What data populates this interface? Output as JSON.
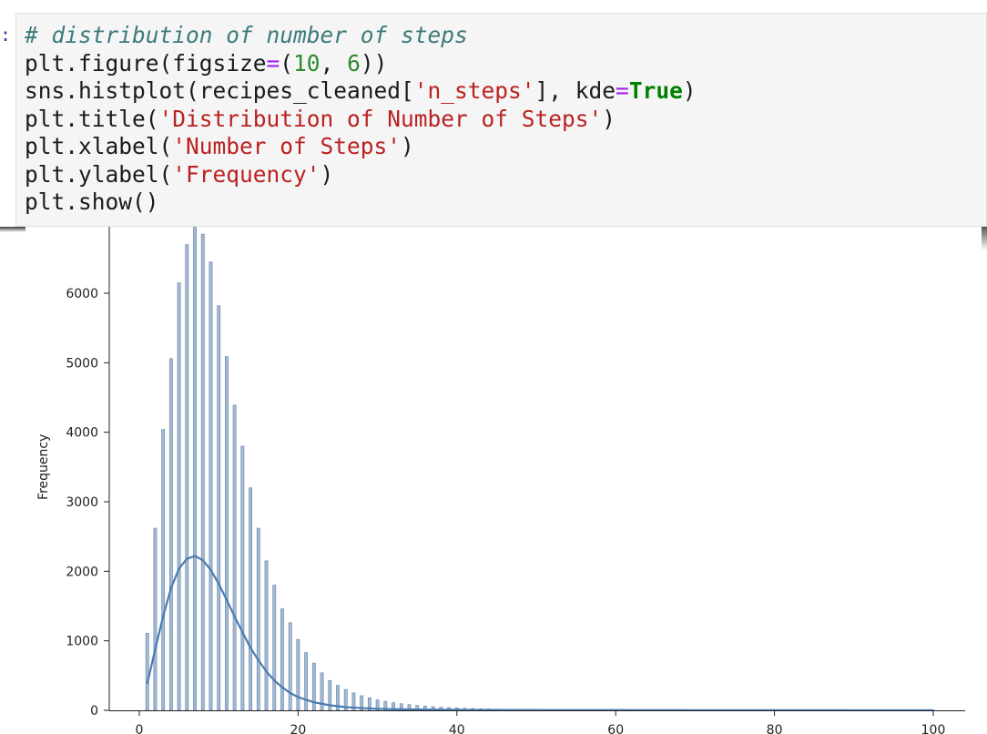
{
  "cell": {
    "prompt": ":",
    "lines": [
      [
        {
          "t": "# distribution of number of steps",
          "c": "comment"
        }
      ],
      [
        {
          "t": "plt.figure(figsize",
          "c": "plain"
        },
        {
          "t": "=",
          "c": "op"
        },
        {
          "t": "(",
          "c": "plain"
        },
        {
          "t": "10",
          "c": "number"
        },
        {
          "t": ", ",
          "c": "plain"
        },
        {
          "t": "6",
          "c": "number"
        },
        {
          "t": "))",
          "c": "plain"
        }
      ],
      [
        {
          "t": "sns.histplot(recipes_cleaned[",
          "c": "plain"
        },
        {
          "t": "'n_steps'",
          "c": "string"
        },
        {
          "t": "], kde",
          "c": "plain"
        },
        {
          "t": "=",
          "c": "op"
        },
        {
          "t": "True",
          "c": "keyword"
        },
        {
          "t": ")",
          "c": "plain"
        }
      ],
      [
        {
          "t": "plt.title(",
          "c": "plain"
        },
        {
          "t": "'Distribution of Number of Steps'",
          "c": "string"
        },
        {
          "t": ")",
          "c": "plain"
        }
      ],
      [
        {
          "t": "plt.xlabel(",
          "c": "plain"
        },
        {
          "t": "'Number of Steps'",
          "c": "string"
        },
        {
          "t": ")",
          "c": "plain"
        }
      ],
      [
        {
          "t": "plt.ylabel(",
          "c": "plain"
        },
        {
          "t": "'Frequency'",
          "c": "string"
        },
        {
          "t": ")",
          "c": "plain"
        }
      ],
      [
        {
          "t": "plt.show()",
          "c": "plain"
        }
      ]
    ]
  },
  "colors": {
    "bar_fill": "#a7b9d1",
    "bar_edge": "#5d82ab",
    "kde_line": "#4a7bb0",
    "axis": "#222222"
  },
  "chart_data": {
    "type": "bar",
    "title": "",
    "xlabel": "",
    "ylabel": "Frequency",
    "xlim": [
      -5,
      105
    ],
    "ylim": [
      0,
      7000
    ],
    "grid": false,
    "xticks": [
      0,
      20,
      40,
      60,
      80,
      100
    ],
    "yticks": [
      0,
      1000,
      2000,
      3000,
      4000,
      5000,
      6000
    ],
    "bars": {
      "x": [
        1,
        2,
        3,
        4,
        5,
        6,
        7,
        8,
        9,
        10,
        11,
        12,
        13,
        14,
        15,
        16,
        17,
        18,
        19,
        20,
        21,
        22,
        23,
        24,
        25,
        26,
        27,
        28,
        29,
        30,
        31,
        32,
        33,
        34,
        35,
        36,
        37,
        38,
        39,
        40,
        41,
        42,
        43,
        44,
        45,
        46,
        47,
        48,
        49,
        50,
        55,
        60,
        65,
        70,
        75,
        80,
        85,
        90,
        95,
        100
      ],
      "values": [
        1110,
        2620,
        4040,
        5060,
        6150,
        6700,
        6950,
        6850,
        6450,
        5820,
        5090,
        4390,
        3800,
        3200,
        2620,
        2150,
        1800,
        1460,
        1260,
        1020,
        830,
        680,
        540,
        430,
        360,
        300,
        250,
        210,
        180,
        150,
        130,
        110,
        95,
        82,
        70,
        60,
        52,
        45,
        40,
        35,
        30,
        26,
        22,
        20,
        18,
        16,
        15,
        14,
        13,
        12,
        9,
        7,
        6,
        5,
        4,
        3,
        3,
        2,
        2,
        2
      ]
    },
    "kde": {
      "x": [
        1,
        2,
        3,
        4,
        5,
        6,
        7,
        8,
        9,
        10,
        11,
        12,
        13,
        14,
        15,
        16,
        17,
        18,
        19,
        20,
        22,
        24,
        26,
        28,
        30,
        32,
        35,
        40,
        45,
        50,
        60,
        70,
        80,
        90,
        100
      ],
      "values": [
        380,
        880,
        1350,
        1760,
        2040,
        2180,
        2220,
        2160,
        2020,
        1820,
        1590,
        1350,
        1120,
        900,
        720,
        560,
        430,
        330,
        250,
        190,
        115,
        72,
        46,
        32,
        22,
        16,
        11,
        7,
        5,
        4,
        3,
        2,
        2,
        1,
        1
      ]
    }
  }
}
